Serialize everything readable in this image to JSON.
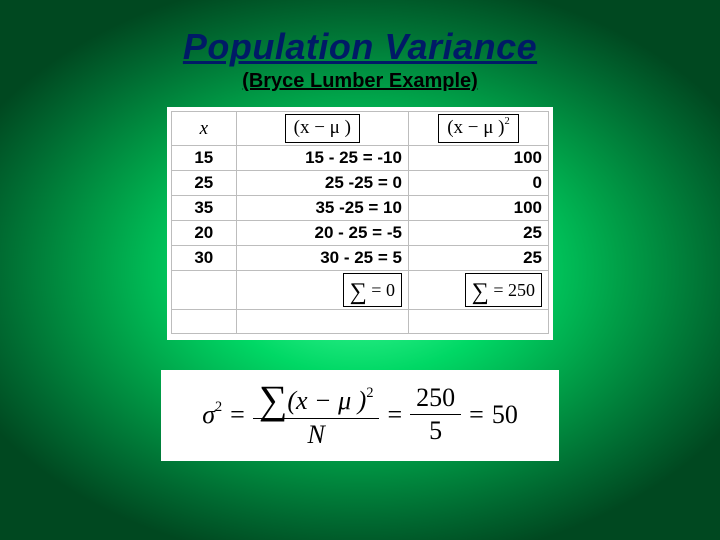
{
  "title": "Population Variance",
  "subtitle": "(Bryce Lumber Example)",
  "table": {
    "headers": {
      "x": "x",
      "dev": "(x − μ )",
      "sq": "(x − μ )",
      "sq_sup": "2"
    },
    "rows": [
      {
        "x": "15",
        "dev": "15 - 25 = -10",
        "sq": "100"
      },
      {
        "x": "25",
        "dev": "25 -25 = 0",
        "sq": "0"
      },
      {
        "x": "35",
        "dev": "35 -25 = 10",
        "sq": "100"
      },
      {
        "x": "20",
        "dev": "20 - 25 = -5",
        "sq": "25"
      },
      {
        "x": "30",
        "dev": "30 - 25 = 5",
        "sq": "25"
      }
    ],
    "sums": {
      "dev": "= 0",
      "sq": "= 250"
    }
  },
  "formula": {
    "sigma2": "σ",
    "sup2": "2",
    "eq": "=",
    "num_expr": "(x − μ )",
    "den_N": "N",
    "frac_num": "250",
    "frac_den": "5",
    "result": "50"
  }
}
